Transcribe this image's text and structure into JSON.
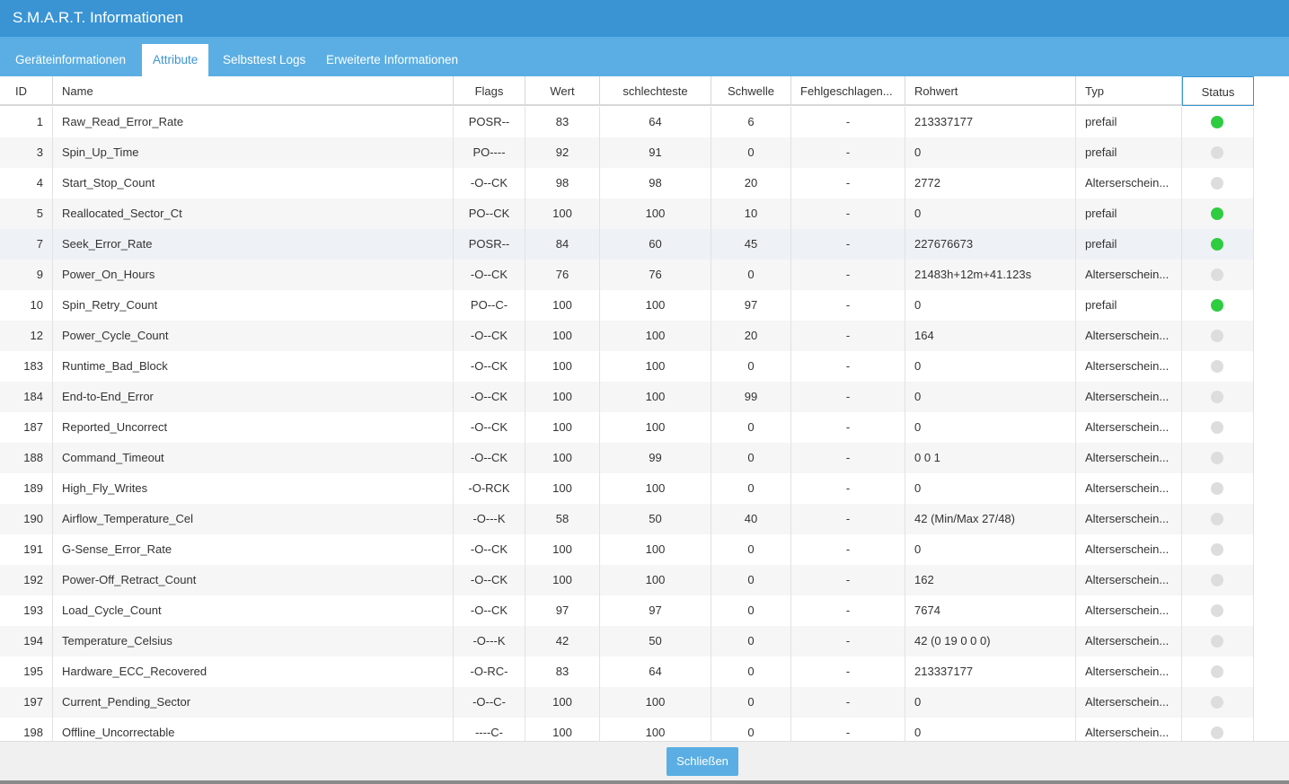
{
  "window": {
    "title": "S.M.A.R.T. Informationen"
  },
  "tabs": [
    {
      "label": "Geräteinformationen",
      "active": false
    },
    {
      "label": "Attribute",
      "active": true
    },
    {
      "label": "Selbsttest Logs",
      "active": false
    },
    {
      "label": "Erweiterte Informationen",
      "active": false
    }
  ],
  "table": {
    "columns": [
      "ID",
      "Name",
      "Flags",
      "Wert",
      "schlechteste",
      "Schwelle",
      "Fehlgeschlagen...",
      "Rohwert",
      "Typ",
      "Status"
    ],
    "rows": [
      {
        "id": "1",
        "name": "Raw_Read_Error_Rate",
        "flags": "POSR--",
        "value": "83",
        "worst": "64",
        "threshold": "6",
        "failed": "-",
        "raw": "213337177",
        "type": "prefail",
        "status": "green"
      },
      {
        "id": "3",
        "name": "Spin_Up_Time",
        "flags": "PO----",
        "value": "92",
        "worst": "91",
        "threshold": "0",
        "failed": "-",
        "raw": "0",
        "type": "prefail",
        "status": "grey"
      },
      {
        "id": "4",
        "name": "Start_Stop_Count",
        "flags": "-O--CK",
        "value": "98",
        "worst": "98",
        "threshold": "20",
        "failed": "-",
        "raw": "2772",
        "type": "Alterserschein...",
        "status": "grey"
      },
      {
        "id": "5",
        "name": "Reallocated_Sector_Ct",
        "flags": "PO--CK",
        "value": "100",
        "worst": "100",
        "threshold": "10",
        "failed": "-",
        "raw": "0",
        "type": "prefail",
        "status": "green"
      },
      {
        "id": "7",
        "name": "Seek_Error_Rate",
        "flags": "POSR--",
        "value": "84",
        "worst": "60",
        "threshold": "45",
        "failed": "-",
        "raw": "227676673",
        "type": "prefail",
        "status": "green"
      },
      {
        "id": "9",
        "name": "Power_On_Hours",
        "flags": "-O--CK",
        "value": "76",
        "worst": "76",
        "threshold": "0",
        "failed": "-",
        "raw": "21483h+12m+41.123s",
        "type": "Alterserschein...",
        "status": "grey"
      },
      {
        "id": "10",
        "name": "Spin_Retry_Count",
        "flags": "PO--C-",
        "value": "100",
        "worst": "100",
        "threshold": "97",
        "failed": "-",
        "raw": "0",
        "type": "prefail",
        "status": "green"
      },
      {
        "id": "12",
        "name": "Power_Cycle_Count",
        "flags": "-O--CK",
        "value": "100",
        "worst": "100",
        "threshold": "20",
        "failed": "-",
        "raw": "164",
        "type": "Alterserschein...",
        "status": "grey"
      },
      {
        "id": "183",
        "name": "Runtime_Bad_Block",
        "flags": "-O--CK",
        "value": "100",
        "worst": "100",
        "threshold": "0",
        "failed": "-",
        "raw": "0",
        "type": "Alterserschein...",
        "status": "grey"
      },
      {
        "id": "184",
        "name": "End-to-End_Error",
        "flags": "-O--CK",
        "value": "100",
        "worst": "100",
        "threshold": "99",
        "failed": "-",
        "raw": "0",
        "type": "Alterserschein...",
        "status": "grey"
      },
      {
        "id": "187",
        "name": "Reported_Uncorrect",
        "flags": "-O--CK",
        "value": "100",
        "worst": "100",
        "threshold": "0",
        "failed": "-",
        "raw": "0",
        "type": "Alterserschein...",
        "status": "grey"
      },
      {
        "id": "188",
        "name": "Command_Timeout",
        "flags": "-O--CK",
        "value": "100",
        "worst": "99",
        "threshold": "0",
        "failed": "-",
        "raw": "0 0 1",
        "type": "Alterserschein...",
        "status": "grey"
      },
      {
        "id": "189",
        "name": "High_Fly_Writes",
        "flags": "-O-RCK",
        "value": "100",
        "worst": "100",
        "threshold": "0",
        "failed": "-",
        "raw": "0",
        "type": "Alterserschein...",
        "status": "grey"
      },
      {
        "id": "190",
        "name": "Airflow_Temperature_Cel",
        "flags": "-O---K",
        "value": "58",
        "worst": "50",
        "threshold": "40",
        "failed": "-",
        "raw": "42 (Min/Max 27/48)",
        "type": "Alterserschein...",
        "status": "grey"
      },
      {
        "id": "191",
        "name": "G-Sense_Error_Rate",
        "flags": "-O--CK",
        "value": "100",
        "worst": "100",
        "threshold": "0",
        "failed": "-",
        "raw": "0",
        "type": "Alterserschein...",
        "status": "grey"
      },
      {
        "id": "192",
        "name": "Power-Off_Retract_Count",
        "flags": "-O--CK",
        "value": "100",
        "worst": "100",
        "threshold": "0",
        "failed": "-",
        "raw": "162",
        "type": "Alterserschein...",
        "status": "grey"
      },
      {
        "id": "193",
        "name": "Load_Cycle_Count",
        "flags": "-O--CK",
        "value": "97",
        "worst": "97",
        "threshold": "0",
        "failed": "-",
        "raw": "7674",
        "type": "Alterserschein...",
        "status": "grey"
      },
      {
        "id": "194",
        "name": "Temperature_Celsius",
        "flags": "-O---K",
        "value": "42",
        "worst": "50",
        "threshold": "0",
        "failed": "-",
        "raw": "42 (0 19 0 0 0)",
        "type": "Alterserschein...",
        "status": "grey"
      },
      {
        "id": "195",
        "name": "Hardware_ECC_Recovered",
        "flags": "-O-RC-",
        "value": "83",
        "worst": "64",
        "threshold": "0",
        "failed": "-",
        "raw": "213337177",
        "type": "Alterserschein...",
        "status": "grey"
      },
      {
        "id": "197",
        "name": "Current_Pending_Sector",
        "flags": "-O--C-",
        "value": "100",
        "worst": "100",
        "threshold": "0",
        "failed": "-",
        "raw": "0",
        "type": "Alterserschein...",
        "status": "grey"
      },
      {
        "id": "198",
        "name": "Offline_Uncorrectable",
        "flags": "----C-",
        "value": "100",
        "worst": "100",
        "threshold": "0",
        "failed": "-",
        "raw": "0",
        "type": "Alterserschein...",
        "status": "grey"
      }
    ]
  },
  "footer": {
    "close_label": "Schließen"
  },
  "colors": {
    "titlebar": "#3a94d4",
    "tabbar": "#5aaee3",
    "status_green": "#2ecc40",
    "status_grey": "#dddddd"
  }
}
